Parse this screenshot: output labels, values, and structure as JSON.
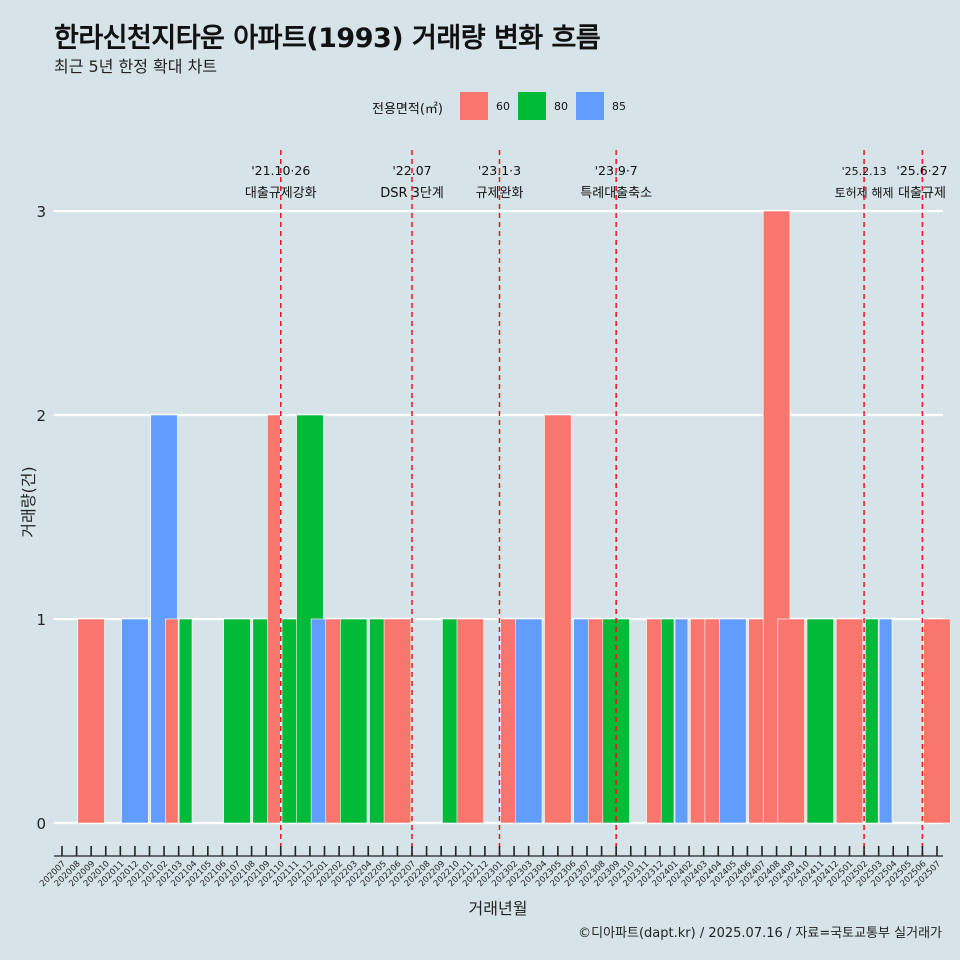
{
  "title": "한라신천지타운 아파트(1993) 거래량 변화 흐름",
  "subtitle": "최근 5년 한정 확대 차트",
  "caption": "©디아파트(dapt.kr) / 2025.07.16 / 자료=국토교통부 실거래가",
  "chart_data": {
    "type": "bar",
    "xlabel": "거래년월",
    "ylabel": "거래량(건)",
    "ylim": [
      0,
      3
    ],
    "yticks": [
      0,
      1,
      2,
      3
    ],
    "legend_title": "전용면적(㎡)",
    "legend_position": "top",
    "grid": true,
    "categories": [
      "202007",
      "202008",
      "202009",
      "202010",
      "202011",
      "202012",
      "202101",
      "202102",
      "202103",
      "202104",
      "202105",
      "202106",
      "202107",
      "202108",
      "202109",
      "202110",
      "202111",
      "202112",
      "202201",
      "202202",
      "202203",
      "202204",
      "202205",
      "202206",
      "202207",
      "202208",
      "202209",
      "202210",
      "202211",
      "202212",
      "202301",
      "202302",
      "202303",
      "202304",
      "202305",
      "202306",
      "202307",
      "202308",
      "202309",
      "202310",
      "202311",
      "202312",
      "202401",
      "202402",
      "202403",
      "202404",
      "202405",
      "202406",
      "202407",
      "202408",
      "202409",
      "202410",
      "202411",
      "202412",
      "202501",
      "202502",
      "202503",
      "202504",
      "202505",
      "202506",
      "202507"
    ],
    "series": [
      {
        "name": "60",
        "color": "#f8766d",
        "values": [
          0,
          0,
          1,
          0,
          0,
          0,
          0,
          0,
          1,
          0,
          0,
          0,
          0,
          0,
          0,
          2,
          0,
          0,
          0,
          1,
          0,
          0,
          0,
          1,
          0,
          0,
          0,
          0,
          1,
          0,
          0,
          1,
          0,
          0,
          2,
          0,
          0,
          1,
          0,
          0,
          0,
          1,
          0,
          0,
          1,
          1,
          0,
          0,
          1,
          3,
          1,
          0,
          0,
          0,
          1,
          0,
          0,
          0,
          0,
          0,
          1
        ]
      },
      {
        "name": "80",
        "color": "#00ba38",
        "values": [
          0,
          0,
          0,
          0,
          0,
          0,
          0,
          0,
          1,
          0,
          0,
          0,
          1,
          0,
          1,
          0,
          1,
          2,
          0,
          0,
          1,
          0,
          1,
          0,
          0,
          0,
          0,
          1,
          0,
          0,
          0,
          0,
          0,
          0,
          0,
          0,
          0,
          0,
          1,
          0,
          0,
          0,
          1,
          0,
          0,
          0,
          0,
          0,
          0,
          0,
          0,
          0,
          1,
          0,
          0,
          0,
          1,
          0,
          0,
          0,
          0
        ]
      },
      {
        "name": "85",
        "color": "#619cff",
        "values": [
          0,
          0,
          0,
          0,
          0,
          1,
          0,
          2,
          0,
          0,
          0,
          0,
          0,
          0,
          0,
          1,
          0,
          0,
          1,
          0,
          0,
          0,
          0,
          0,
          0,
          0,
          0,
          0,
          0,
          0,
          0,
          0,
          1,
          0,
          0,
          0,
          1,
          0,
          0,
          0,
          0,
          0,
          1,
          0,
          0,
          0,
          1,
          0,
          0,
          0,
          0,
          0,
          0,
          0,
          0,
          0,
          1,
          0,
          0,
          0,
          0
        ]
      }
    ],
    "annotations": [
      {
        "at": "202110",
        "date": "'21.10·26",
        "label": "대출규제강화"
      },
      {
        "at": "202207",
        "date": "'22.07",
        "label": "DSR 3단계"
      },
      {
        "at": "202301",
        "date": "'23.1·3",
        "label": "규제완화"
      },
      {
        "at": "202309",
        "date": "'23.9·7",
        "label": "특례대출축소"
      },
      {
        "at": "202502",
        "date": "'25.2.13",
        "label": "토허제 해제"
      },
      {
        "at": "202506",
        "date": "'25.6·27",
        "label": "대출규제"
      }
    ]
  }
}
